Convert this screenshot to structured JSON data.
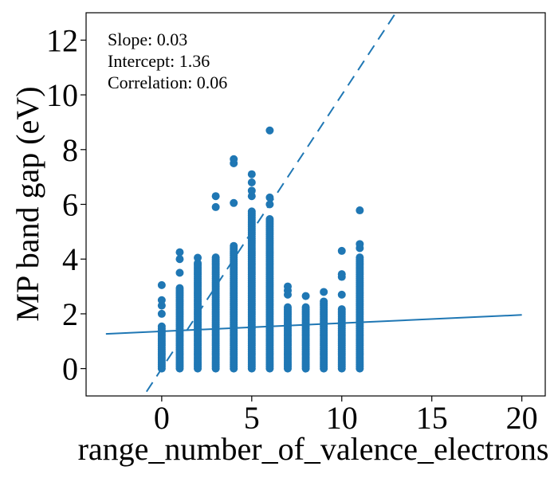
{
  "chart_data": {
    "type": "scatter",
    "title": "",
    "xlabel": "range_number_of_valence_electrons",
    "ylabel": "MP band gap (eV)",
    "xlim": [
      -4.2,
      21.3
    ],
    "ylim": [
      -1.0,
      13.0
    ],
    "xticks": [
      0,
      5,
      10,
      15,
      20
    ],
    "yticks": [
      0,
      2,
      4,
      6,
      8,
      10,
      12
    ],
    "grid": false,
    "color": "#1f77b4",
    "annotations": [
      "Slope: 0.03",
      "Intercept: 1.36",
      "Correlation: 0.06"
    ],
    "fit_line": {
      "slope": 0.03,
      "intercept": 1.36,
      "x_range": [
        -3.1,
        20.0
      ],
      "style": "solid"
    },
    "identity_line": {
      "slope": 1,
      "intercept": 0,
      "style": "dashed"
    },
    "series": [
      {
        "columns": [
          {
            "x": 0,
            "min": 0.0,
            "max": 1.6,
            "outliers": [
              2.0,
              2.3,
              2.5,
              3.05
            ]
          },
          {
            "x": 1,
            "min": 0.0,
            "max": 3.0,
            "outliers": [
              3.5,
              4.0,
              4.25
            ]
          },
          {
            "x": 2,
            "min": 0.0,
            "max": 3.9,
            "outliers": [
              4.05
            ]
          },
          {
            "x": 3,
            "min": 0.0,
            "max": 4.1,
            "outliers": [
              5.9,
              6.3
            ]
          },
          {
            "x": 4,
            "min": 0.0,
            "max": 4.5,
            "outliers": [
              6.05,
              7.5,
              7.65
            ]
          },
          {
            "x": 5,
            "min": 0.0,
            "max": 5.8,
            "outliers": [
              6.3,
              6.5,
              6.8,
              7.1
            ]
          },
          {
            "x": 6,
            "min": 0.0,
            "max": 5.5,
            "outliers": [
              6.0,
              6.25,
              8.7
            ]
          },
          {
            "x": 7,
            "min": 0.0,
            "max": 2.3,
            "outliers": [
              2.7,
              2.85,
              3.0
            ]
          },
          {
            "x": 8,
            "min": 0.0,
            "max": 2.3,
            "outliers": [
              2.65
            ]
          },
          {
            "x": 9,
            "min": 0.0,
            "max": 2.5,
            "outliers": [
              2.8
            ]
          },
          {
            "x": 10,
            "min": 0.0,
            "max": 2.2,
            "outliers": [
              2.7,
              3.35,
              3.45,
              4.3
            ]
          },
          {
            "x": 11,
            "min": 0.0,
            "max": 4.1,
            "outliers": [
              4.4,
              4.55,
              5.78
            ]
          }
        ]
      }
    ]
  }
}
